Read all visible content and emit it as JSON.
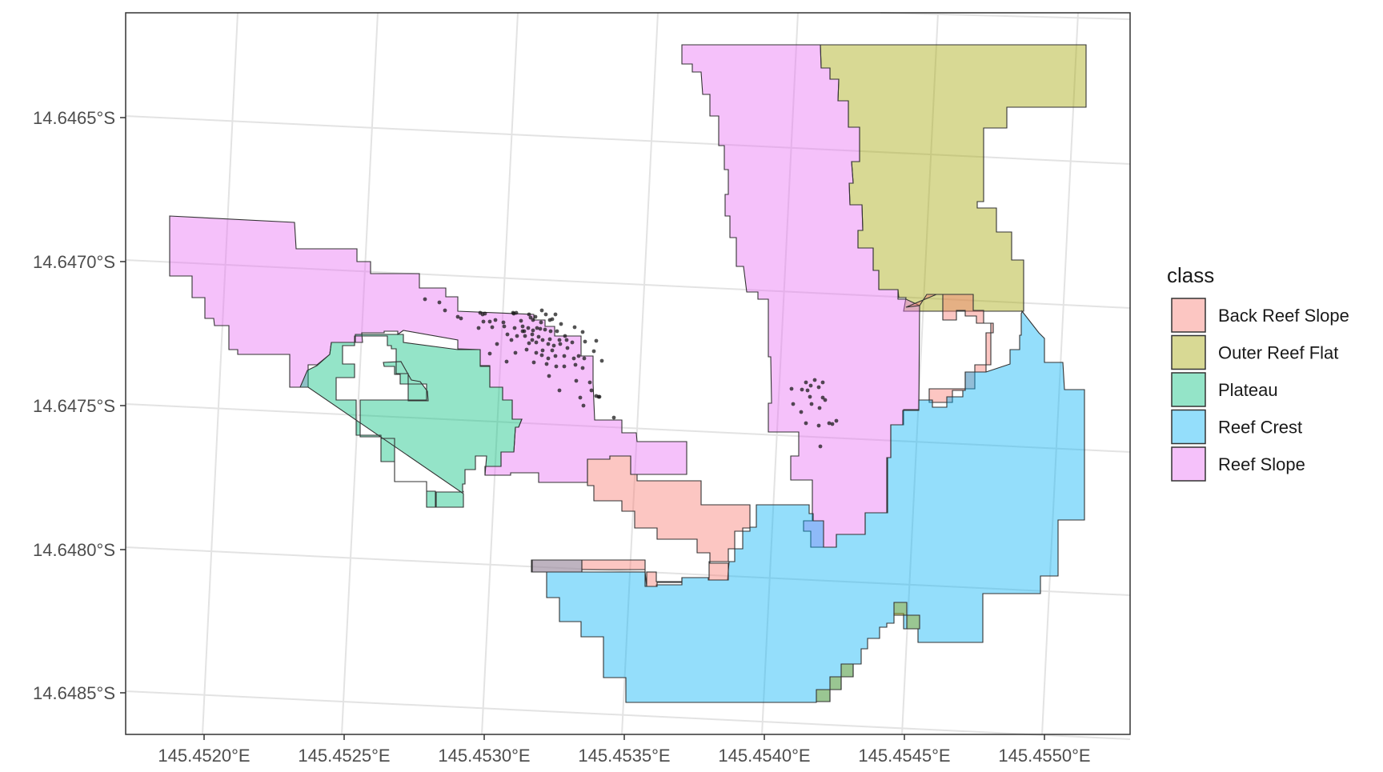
{
  "chart_data": {
    "type": "map",
    "x_ticks": [
      "145.4520°E",
      "145.4525°E",
      "145.4530°E",
      "145.4535°E",
      "145.4540°E",
      "145.4545°E",
      "145.4550°E"
    ],
    "y_ticks": [
      "14.6465°S",
      "14.6470°S",
      "14.6475°S",
      "14.6480°S",
      "14.6485°S"
    ],
    "legend": {
      "title": "class",
      "placement": "right",
      "entries": [
        {
          "label": "Back Reef Slope",
          "color": "#F8766D"
        },
        {
          "label": "Outer Reef Flat",
          "color": "#A3A500"
        },
        {
          "label": "Plateau",
          "color": "#00BF7D"
        },
        {
          "label": "Reef Crest",
          "color": "#00B0F6"
        },
        {
          "label": "Reef Slope",
          "color": "#E76BF3"
        }
      ]
    },
    "polygon_outline_color": "#333333",
    "grid": true,
    "points_shown": true
  }
}
